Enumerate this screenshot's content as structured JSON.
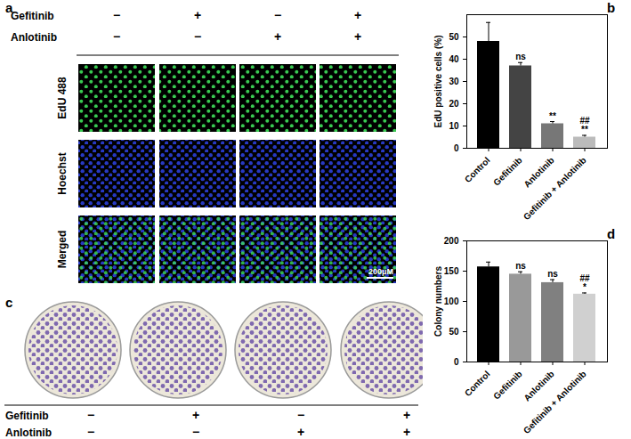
{
  "figure": {
    "panel_labels": [
      "a",
      "b",
      "c",
      "d"
    ],
    "treatments": [
      "Gefitinib",
      "Anlotinib"
    ],
    "signs": [
      [
        "−",
        "+",
        "−",
        "+"
      ],
      [
        "−",
        "−",
        "+",
        "+"
      ]
    ],
    "image_rows": [
      "EdU 488",
      "Hoechst",
      "Merged"
    ],
    "scale_bar": "200μM"
  },
  "chart_data": [
    {
      "type": "bar",
      "y_label": "EdU positive cells (%)",
      "categories": [
        "Control",
        "Gefitinib",
        "Anlotinib",
        "Gefitinib + Anlotinib"
      ],
      "values": [
        48,
        37,
        11,
        5
      ],
      "errors": [
        8.5,
        1.5,
        1,
        0.8
      ],
      "annotations": [
        null,
        [
          "ns"
        ],
        [
          "**"
        ],
        [
          "##",
          "**"
        ]
      ],
      "colors": [
        "#000000",
        "#444444",
        "#777777",
        "#bbbbbb"
      ],
      "ylim": [
        0,
        60
      ],
      "yticks": [
        0,
        10,
        20,
        30,
        40,
        50
      ]
    },
    {
      "type": "bar",
      "y_label": "Colony numbers",
      "categories": [
        "Control",
        "Gefitinib",
        "Anlotinib",
        "Gefitinib + Anlotinib"
      ],
      "values": [
        157,
        145,
        131,
        112
      ],
      "errors": [
        8,
        4,
        5,
        2
      ],
      "annotations": [
        null,
        [
          "ns"
        ],
        [
          "ns"
        ],
        [
          "##",
          "*"
        ]
      ],
      "colors": [
        "#000000",
        "#999999",
        "#808080",
        "#d0d0d0"
      ],
      "ylim": [
        0,
        200
      ],
      "yticks": [
        0,
        50,
        100,
        150,
        200
      ]
    }
  ]
}
